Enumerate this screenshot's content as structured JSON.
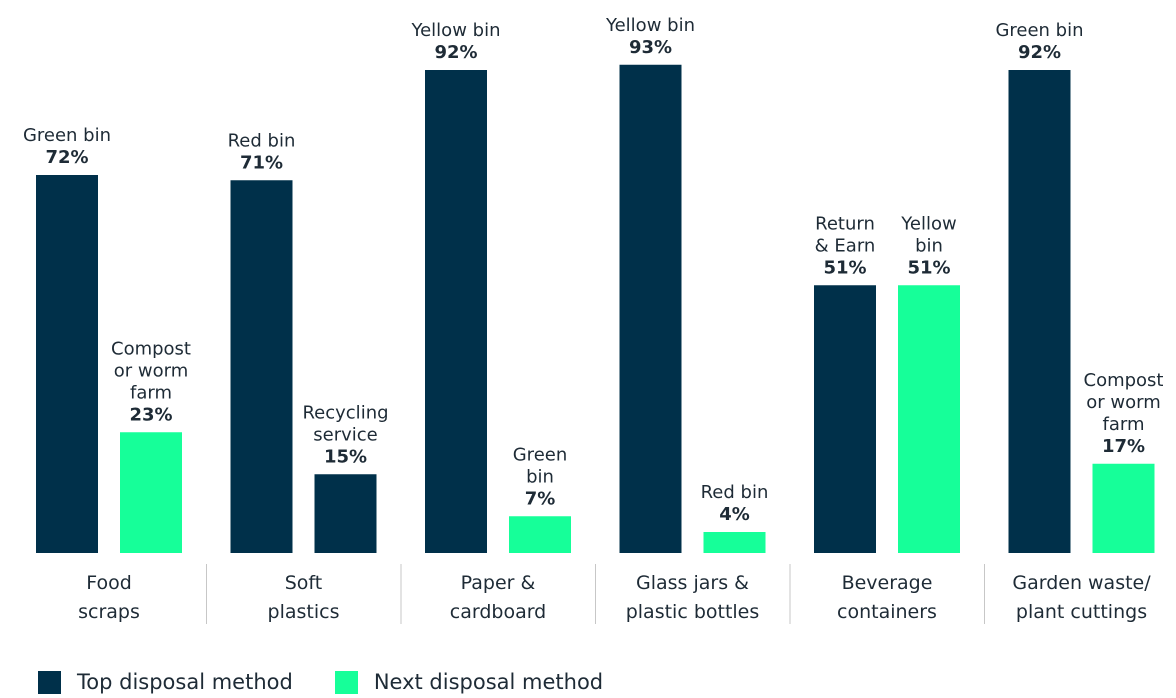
{
  "chart_data": {
    "type": "bar",
    "colors": {
      "top": "#00304a",
      "next": "#16ff99"
    },
    "ylim": [
      0,
      100
    ],
    "series": [
      {
        "name": "Top disposal method",
        "key": "top"
      },
      {
        "name": "Next disposal method",
        "key": "next"
      }
    ],
    "categories": [
      {
        "label": [
          "Food",
          "scraps"
        ],
        "bars": [
          {
            "method": [
              "Green bin"
            ],
            "value": 72,
            "value_label": "72%",
            "color_key": "top"
          },
          {
            "method": [
              "Compost",
              "or worm",
              "farm"
            ],
            "value": 23,
            "value_label": "23%",
            "color_key": "next"
          }
        ]
      },
      {
        "label": [
          "Soft",
          "plastics"
        ],
        "bars": [
          {
            "method": [
              "Red bin"
            ],
            "value": 71,
            "value_label": "71%",
            "color_key": "top"
          },
          {
            "method": [
              "Recycling",
              "service"
            ],
            "value": 15,
            "value_label": "15%",
            "color_key": "top"
          }
        ]
      },
      {
        "label": [
          "Paper &",
          "cardboard"
        ],
        "bars": [
          {
            "method": [
              "Yellow bin"
            ],
            "value": 92,
            "value_label": "92%",
            "color_key": "top"
          },
          {
            "method": [
              "Green",
              "bin"
            ],
            "value": 7,
            "value_label": "7%",
            "color_key": "next"
          }
        ]
      },
      {
        "label": [
          "Glass jars &",
          "plastic bottles"
        ],
        "bars": [
          {
            "method": [
              "Yellow bin"
            ],
            "value": 93,
            "value_label": "93%",
            "color_key": "top"
          },
          {
            "method": [
              "Red bin"
            ],
            "value": 4,
            "value_label": "4%",
            "color_key": "next"
          }
        ]
      },
      {
        "label": [
          "Beverage",
          "containers"
        ],
        "bars": [
          {
            "method": [
              "Return",
              "& Earn"
            ],
            "value": 51,
            "value_label": "51%",
            "color_key": "top"
          },
          {
            "method": [
              "Yellow",
              "bin"
            ],
            "value": 51,
            "value_label": "51%",
            "color_key": "next"
          }
        ]
      },
      {
        "label": [
          "Garden waste/",
          "plant cuttings"
        ],
        "bars": [
          {
            "method": [
              "Green bin"
            ],
            "value": 92,
            "value_label": "92%",
            "color_key": "top"
          },
          {
            "method": [
              "Compost",
              "or worm",
              "farm"
            ],
            "value": 17,
            "value_label": "17%",
            "color_key": "next"
          }
        ]
      }
    ]
  },
  "legend": {
    "items": [
      {
        "label": "Top disposal method",
        "color_key": "top"
      },
      {
        "label": "Next disposal method",
        "color_key": "next"
      }
    ]
  }
}
